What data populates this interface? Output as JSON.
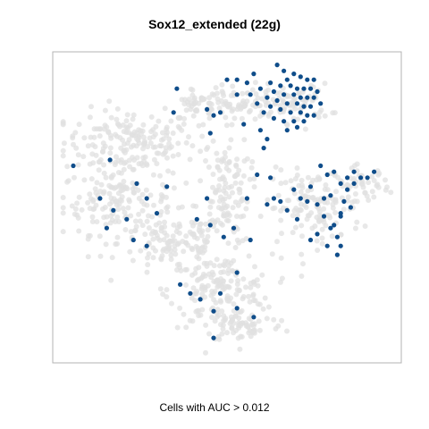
{
  "chart_data": {
    "type": "scatter",
    "title": "Sox12_extended (22g)",
    "xlabel": "Cells with AUC > 0.012",
    "ylabel": "",
    "grid": false,
    "legend": "none",
    "colors": {
      "background_cells": "#e0e0e0",
      "highlighted_cells": "#0f4d8a",
      "frame": "#b3b3b3"
    },
    "xlim": [
      0,
      100
    ],
    "ylim": [
      0,
      100
    ],
    "series": [
      {
        "label": "all cells",
        "clusters": [
          {
            "cx": 21,
            "cy": 72,
            "rx": 18,
            "ry": 10,
            "n": 180
          },
          {
            "cx": 17,
            "cy": 52,
            "rx": 15,
            "ry": 10,
            "n": 150
          },
          {
            "cx": 34,
            "cy": 38,
            "rx": 15,
            "ry": 9,
            "n": 120
          },
          {
            "cx": 48,
            "cy": 22,
            "rx": 14,
            "ry": 11,
            "n": 170
          },
          {
            "cx": 55,
            "cy": 10,
            "rx": 11,
            "ry": 5,
            "n": 60
          },
          {
            "cx": 49,
            "cy": 56,
            "rx": 7,
            "ry": 17,
            "n": 120
          },
          {
            "cx": 53,
            "cy": 85,
            "rx": 12,
            "ry": 6,
            "n": 80
          },
          {
            "cx": 71,
            "cy": 85,
            "rx": 9,
            "ry": 6,
            "n": 70
          },
          {
            "cx": 76,
            "cy": 50,
            "rx": 13,
            "ry": 11,
            "n": 130
          },
          {
            "cx": 90,
            "cy": 58,
            "rx": 8,
            "ry": 5,
            "n": 50
          },
          {
            "cx": 42,
            "cy": 84,
            "rx": 8,
            "ry": 5,
            "n": 40
          }
        ]
      },
      {
        "label": "cells with AUC > 0.012",
        "points": [
          [
            65,
            98
          ],
          [
            67,
            96
          ],
          [
            70,
            95
          ],
          [
            72,
            94
          ],
          [
            74,
            93
          ],
          [
            76,
            93
          ],
          [
            68,
            93
          ],
          [
            63,
            92
          ],
          [
            66,
            91
          ],
          [
            69,
            91
          ],
          [
            71,
            90
          ],
          [
            73,
            90
          ],
          [
            75,
            90
          ],
          [
            77,
            89
          ],
          [
            64,
            89
          ],
          [
            67,
            88
          ],
          [
            70,
            88
          ],
          [
            72,
            87
          ],
          [
            74,
            87
          ],
          [
            76,
            87
          ],
          [
            62,
            87
          ],
          [
            65,
            86
          ],
          [
            68,
            85
          ],
          [
            71,
            85
          ],
          [
            73,
            84
          ],
          [
            75,
            84
          ],
          [
            78,
            85
          ],
          [
            63,
            84
          ],
          [
            66,
            83
          ],
          [
            69,
            82
          ],
          [
            72,
            82
          ],
          [
            74,
            81
          ],
          [
            76,
            81
          ],
          [
            70,
            79
          ],
          [
            73,
            79
          ],
          [
            67,
            79
          ],
          [
            64,
            80
          ],
          [
            71,
            77
          ],
          [
            68,
            76
          ],
          [
            61,
            82
          ],
          [
            59,
            85
          ],
          [
            57,
            88
          ],
          [
            60,
            90
          ],
          [
            56,
            92
          ],
          [
            53,
            93
          ],
          [
            50,
            93
          ],
          [
            58,
            95
          ],
          [
            53,
            88
          ],
          [
            55,
            78
          ],
          [
            60,
            76
          ],
          [
            62,
            73
          ],
          [
            61,
            70
          ],
          [
            48,
            82
          ],
          [
            46,
            81
          ],
          [
            45,
            75
          ],
          [
            34,
            82
          ],
          [
            35,
            90
          ],
          [
            44,
            83
          ],
          [
            15,
            66
          ],
          [
            4,
            64
          ],
          [
            12,
            53
          ],
          [
            14,
            43
          ],
          [
            16,
            49
          ],
          [
            20,
            46
          ],
          [
            23,
            58
          ],
          [
            26,
            37
          ],
          [
            22,
            39
          ],
          [
            32,
            57
          ],
          [
            26,
            53
          ],
          [
            29,
            48
          ],
          [
            44,
            53
          ],
          [
            45,
            44
          ],
          [
            41,
            46
          ],
          [
            49,
            40
          ],
          [
            56,
            53
          ],
          [
            57,
            39
          ],
          [
            52,
            43
          ],
          [
            53,
            28
          ],
          [
            36,
            24
          ],
          [
            39,
            21
          ],
          [
            48,
            21
          ],
          [
            42,
            19
          ],
          [
            53,
            16
          ],
          [
            46,
            15
          ],
          [
            58,
            13
          ],
          [
            46,
            6
          ],
          [
            59,
            61
          ],
          [
            63,
            60
          ],
          [
            64,
            53
          ],
          [
            62,
            51
          ],
          [
            66,
            52
          ],
          [
            70,
            56
          ],
          [
            72,
            53
          ],
          [
            68,
            49
          ],
          [
            71,
            46
          ],
          [
            74,
            52
          ],
          [
            77,
            51
          ],
          [
            79,
            53
          ],
          [
            81,
            54
          ],
          [
            75,
            57
          ],
          [
            79,
            47
          ],
          [
            82,
            44
          ],
          [
            84,
            47
          ],
          [
            81,
            43
          ],
          [
            83,
            40
          ],
          [
            84,
            37
          ],
          [
            80,
            37
          ],
          [
            83,
            34
          ],
          [
            75,
            39
          ],
          [
            77,
            41
          ],
          [
            78,
            64
          ],
          [
            80,
            61
          ],
          [
            86,
            60
          ],
          [
            88,
            58
          ],
          [
            90,
            60
          ],
          [
            92,
            60
          ],
          [
            94,
            62
          ],
          [
            88,
            62
          ],
          [
            86,
            56
          ],
          [
            84,
            58
          ],
          [
            82,
            62
          ],
          [
            85,
            52
          ],
          [
            87,
            50
          ],
          [
            84,
            48
          ]
        ]
      }
    ]
  }
}
